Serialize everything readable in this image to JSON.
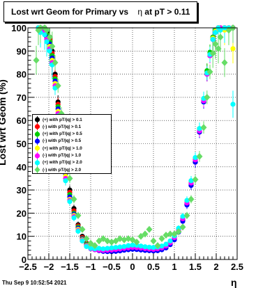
{
  "title_prefix": "Lost wrt Geom for Primary vs",
  "title_eta": "η",
  "title_suffix": " at pT > 0.11",
  "footer": "Thu Sep  9 10:52:54 2021",
  "chart_data": {
    "type": "scatter",
    "title": "Lost wrt Geom for Primary vs η at pT > 0.11",
    "xlabel": "η",
    "ylabel": "Lost wrt Geom (%)",
    "xlim": [
      -2.5,
      2.5
    ],
    "ylim": [
      0,
      100
    ],
    "x_ticks": [
      "−2.5",
      "−2",
      "−1.5",
      "−1",
      "−0.5",
      "0",
      "0.5",
      "1",
      "1.5",
      "2",
      "2.5"
    ],
    "y_ticks": [
      "0",
      "10",
      "20",
      "30",
      "40",
      "50",
      "60",
      "70",
      "80",
      "90",
      "100"
    ],
    "grid": true,
    "legend_position": "middle-left",
    "series": [
      {
        "name": "(+) with pT/|q| > 0.1",
        "color": "#000000",
        "marker": "circle",
        "x": [
          -2.25,
          -2.2,
          -2.1,
          -2.05,
          -1.98,
          -1.92,
          -1.85,
          -1.78,
          -1.7,
          -1.6,
          -1.5,
          -1.4,
          -1.3,
          -1.2,
          -1.1,
          -1.0,
          -0.9,
          -0.8,
          -0.7,
          -0.6,
          -0.5,
          -0.4,
          -0.3,
          -0.2,
          -0.1,
          0.0,
          0.1,
          0.2,
          0.3,
          0.4,
          0.5,
          0.6,
          0.7,
          0.8,
          0.9,
          1.0,
          1.1,
          1.2,
          1.3,
          1.4,
          1.5,
          1.6,
          1.7,
          1.78,
          1.85,
          1.92,
          1.98,
          2.05,
          2.1,
          2.2,
          2.3,
          2.4
        ],
        "y": [
          100,
          100,
          100,
          98,
          96,
          90,
          80,
          68,
          55,
          40,
          30,
          22,
          15,
          10,
          7,
          5,
          4.5,
          4,
          4,
          3.8,
          3.8,
          4,
          4.2,
          4.5,
          4.8,
          5,
          5,
          4.8,
          4.6,
          4.5,
          4.4,
          4.5,
          4.8,
          5.5,
          7,
          9,
          12,
          17,
          24,
          32,
          42,
          55,
          68,
          80,
          88,
          95,
          98,
          100,
          100,
          100,
          100,
          100
        ]
      },
      {
        "name": "(-) with pT/|q| > 0.1",
        "color": "#ff0000",
        "marker": "circle",
        "x": [
          -2.25,
          -2.2,
          -2.1,
          -2.05,
          -1.98,
          -1.92,
          -1.85,
          -1.78,
          -1.7,
          -1.6,
          -1.5,
          -1.4,
          -1.3,
          -1.2,
          -1.1,
          -1.0,
          -0.9,
          -0.8,
          -0.7,
          -0.6,
          -0.5,
          -0.4,
          -0.3,
          -0.2,
          -0.1,
          0.0,
          0.1,
          0.2,
          0.3,
          0.4,
          0.5,
          0.6,
          0.7,
          0.8,
          0.9,
          1.0,
          1.1,
          1.2,
          1.3,
          1.4,
          1.5,
          1.6,
          1.7,
          1.78,
          1.85,
          1.92,
          1.98,
          2.05,
          2.1,
          2.2,
          2.3,
          2.4
        ],
        "y": [
          100,
          100,
          99,
          97,
          95,
          89,
          79,
          67,
          54,
          39,
          29,
          21,
          14.5,
          9.5,
          6.8,
          5,
          4.6,
          4.2,
          4,
          4,
          4,
          4.2,
          4.4,
          4.6,
          5,
          5.2,
          5.2,
          5,
          4.8,
          4.6,
          4.5,
          4.6,
          5,
          5.8,
          7.2,
          9.2,
          12.5,
          17.5,
          24.5,
          33,
          43,
          56,
          69,
          81,
          89,
          96,
          99,
          100,
          100,
          100,
          100,
          100
        ]
      },
      {
        "name": "(+) with pT/|q| > 0.5",
        "color": "#00cc00",
        "marker": "circle",
        "x": [
          -2.25,
          -2.2,
          -2.1,
          -2.05,
          -1.98,
          -1.92,
          -1.85,
          -1.78,
          -1.7,
          -1.6,
          -1.5,
          -1.4,
          -1.3,
          -1.2,
          -1.1,
          -1.0,
          -0.9,
          -0.8,
          -0.7,
          -0.6,
          -0.5,
          -0.4,
          -0.3,
          -0.2,
          -0.1,
          0.0,
          0.1,
          0.2,
          0.3,
          0.4,
          0.5,
          0.6,
          0.7,
          0.8,
          0.9,
          1.0,
          1.1,
          1.2,
          1.3,
          1.4,
          1.5,
          1.6,
          1.7,
          1.78,
          1.85,
          1.92,
          1.98,
          2.05,
          2.1,
          2.2,
          2.3,
          2.4
        ],
        "y": [
          100,
          100,
          99,
          97,
          94,
          88,
          78,
          66,
          53,
          38,
          28,
          20,
          14,
          9,
          6.5,
          5.2,
          4.8,
          4.5,
          4.2,
          4.2,
          4.3,
          4.5,
          4.8,
          5,
          5.4,
          5.6,
          5.5,
          5.2,
          5,
          4.9,
          4.8,
          5,
          5.4,
          6.2,
          7.6,
          9.8,
          13,
          18,
          25,
          33.5,
          43.5,
          56.5,
          69.5,
          81.5,
          89.5,
          96,
          99,
          100,
          100,
          100,
          100,
          100
        ]
      },
      {
        "name": "(-) with pT/|q| > 0.5",
        "color": "#0000ff",
        "marker": "circle",
        "x": [
          -2.25,
          -2.2,
          -2.1,
          -2.05,
          -1.98,
          -1.92,
          -1.85,
          -1.78,
          -1.7,
          -1.6,
          -1.5,
          -1.4,
          -1.3,
          -1.2,
          -1.1,
          -1.0,
          -0.9,
          -0.8,
          -0.7,
          -0.6,
          -0.5,
          -0.4,
          -0.3,
          -0.2,
          -0.1,
          0.0,
          0.1,
          0.2,
          0.3,
          0.4,
          0.5,
          0.6,
          0.7,
          0.8,
          0.9,
          1.0,
          1.1,
          1.2,
          1.3,
          1.4,
          1.5,
          1.6,
          1.7,
          1.78,
          1.85,
          1.92,
          1.98,
          2.05,
          2.1,
          2.2,
          2.3,
          2.4
        ],
        "y": [
          100,
          100,
          99,
          96,
          93,
          87,
          77,
          65,
          52,
          37,
          27,
          19.5,
          13.5,
          8.8,
          6.2,
          4.8,
          4.2,
          3.8,
          3.5,
          3.4,
          3.4,
          3.5,
          3.7,
          4,
          4.2,
          4.4,
          4.3,
          4.1,
          3.9,
          3.8,
          3.7,
          3.8,
          4.2,
          5,
          6.4,
          8.5,
          11.8,
          16.5,
          23.5,
          32,
          42,
          55,
          68,
          80,
          88,
          95,
          98,
          100,
          100,
          100,
          100,
          100
        ]
      },
      {
        "name": "(+) with pT/|q| > 1.0",
        "color": "#ffff00",
        "marker": "circle",
        "x": [
          -2.25,
          -2.2,
          -2.1,
          -2.05,
          -1.98,
          -1.92,
          -1.85,
          -1.78,
          -1.7,
          -1.6,
          -1.5,
          -1.4,
          -1.3,
          -1.2,
          -1.1,
          -1.0,
          -0.9,
          -0.8,
          -0.7,
          -0.6,
          -0.5,
          -0.4,
          -0.3,
          -0.2,
          -0.1,
          0.0,
          0.1,
          0.2,
          0.3,
          0.4,
          0.5,
          0.6,
          0.7,
          0.8,
          0.9,
          1.0,
          1.1,
          1.2,
          1.3,
          1.4,
          1.5,
          1.6,
          1.7,
          1.78,
          1.85,
          1.92,
          1.98,
          2.05,
          2.1,
          2.2,
          2.3,
          2.4
        ],
        "y": [
          100,
          99,
          98,
          95,
          92,
          86,
          76,
          64,
          51,
          36,
          26,
          19,
          13,
          8.5,
          6,
          5,
          4.8,
          4.6,
          4.4,
          4.5,
          4.6,
          4.8,
          5,
          5.3,
          5.6,
          5.8,
          5.7,
          5.4,
          5.2,
          5,
          5,
          5.2,
          5.6,
          6.4,
          7.8,
          10,
          13.2,
          18.2,
          25,
          33.5,
          43.5,
          56,
          69,
          80.5,
          88.5,
          95.5,
          98.5,
          100,
          100,
          99,
          100,
          91
        ]
      },
      {
        "name": "(-) with pT/|q| > 1.0",
        "color": "#ff00ff",
        "marker": "circle",
        "x": [
          -2.25,
          -2.2,
          -2.1,
          -2.05,
          -1.98,
          -1.92,
          -1.85,
          -1.78,
          -1.7,
          -1.6,
          -1.5,
          -1.4,
          -1.3,
          -1.2,
          -1.1,
          -1.0,
          -0.9,
          -0.8,
          -0.7,
          -0.6,
          -0.5,
          -0.4,
          -0.3,
          -0.2,
          -0.1,
          0.0,
          0.1,
          0.2,
          0.3,
          0.4,
          0.5,
          0.6,
          0.7,
          0.8,
          0.9,
          1.0,
          1.1,
          1.2,
          1.3,
          1.4,
          1.5,
          1.6,
          1.7,
          1.78,
          1.85,
          1.92,
          1.98,
          2.05,
          2.1,
          2.2,
          2.3,
          2.4
        ],
        "y": [
          100,
          99,
          98,
          95,
          91,
          85,
          75,
          63,
          50,
          35,
          25.5,
          18.5,
          12.5,
          8.2,
          5.8,
          4.6,
          4.2,
          4,
          3.9,
          4,
          4.1,
          4.3,
          4.5,
          4.8,
          5,
          5.2,
          5.1,
          4.9,
          4.7,
          4.5,
          4.4,
          4.6,
          5,
          5.8,
          7.2,
          9.4,
          12.6,
          17.6,
          24.4,
          33,
          43,
          55.5,
          68.5,
          80,
          88,
          95,
          98,
          100,
          100,
          100,
          100,
          100
        ]
      },
      {
        "name": "(+) with pT/|q| > 2.0",
        "color": "#00ffff",
        "marker": "circle",
        "x": [
          -2.25,
          -2.2,
          -2.1,
          -2.05,
          -1.98,
          -1.92,
          -1.85,
          -1.78,
          -1.7,
          -1.6,
          -1.5,
          -1.4,
          -1.3,
          -1.2,
          -1.1,
          -1.0,
          -0.9,
          -0.8,
          -0.7,
          -0.6,
          -0.5,
          -0.4,
          -0.3,
          -0.2,
          -0.1,
          0.0,
          0.1,
          0.2,
          0.3,
          0.4,
          0.5,
          0.6,
          0.7,
          0.8,
          0.9,
          1.0,
          1.1,
          1.2,
          1.3,
          1.4,
          1.5,
          1.6,
          1.7,
          1.78,
          1.85,
          1.92,
          1.98,
          2.05,
          2.1,
          2.2,
          2.3,
          2.4
        ],
        "y": [
          100,
          98,
          97,
          94,
          90,
          84,
          74,
          62,
          49,
          34,
          25,
          18,
          12.2,
          8,
          5.6,
          4.8,
          4.6,
          4.8,
          4.6,
          4.8,
          5,
          5.2,
          5.4,
          5.6,
          6,
          6.2,
          6.1,
          5.8,
          5.5,
          5.3,
          5.2,
          5.4,
          5.8,
          6.6,
          8,
          10.2,
          13.5,
          18.6,
          25.5,
          34,
          44,
          56.5,
          69.5,
          80.5,
          88.5,
          95,
          98,
          100,
          99,
          100,
          100,
          67
        ]
      },
      {
        "name": "(-) with pT/|q| > 2.0",
        "color": "#66dd66",
        "marker": "diamond",
        "x": [
          -2.3,
          -2.25,
          -2.2,
          -2.1,
          -2.05,
          -1.98,
          -1.92,
          -1.85,
          -1.78,
          -1.7,
          -1.6,
          -1.5,
          -1.4,
          -1.3,
          -1.2,
          -1.1,
          -1.0,
          -0.9,
          -0.8,
          -0.7,
          -0.6,
          -0.5,
          -0.4,
          -0.3,
          -0.2,
          -0.1,
          0.0,
          0.1,
          0.2,
          0.3,
          0.4,
          0.5,
          0.6,
          0.7,
          0.8,
          0.9,
          1.0,
          1.1,
          1.2,
          1.3,
          1.4,
          1.5,
          1.6,
          1.7,
          1.78,
          1.85,
          1.92,
          1.98,
          2.05,
          2.1,
          2.2,
          2.3,
          2.4
        ],
        "y": [
          86,
          99,
          100,
          100,
          99,
          96,
          92,
          85,
          75,
          63,
          50,
          35,
          26,
          19,
          13,
          9,
          7,
          6,
          8,
          9,
          8,
          7.5,
          8,
          9,
          8.5,
          9,
          8.5,
          7.5,
          10,
          11,
          13,
          8,
          6,
          9,
          10.5,
          11,
          11,
          12,
          14,
          19,
          26,
          34.5,
          44.5,
          57,
          70,
          81,
          89,
          93,
          91,
          96,
          85,
          99,
          100
        ]
      }
    ]
  }
}
